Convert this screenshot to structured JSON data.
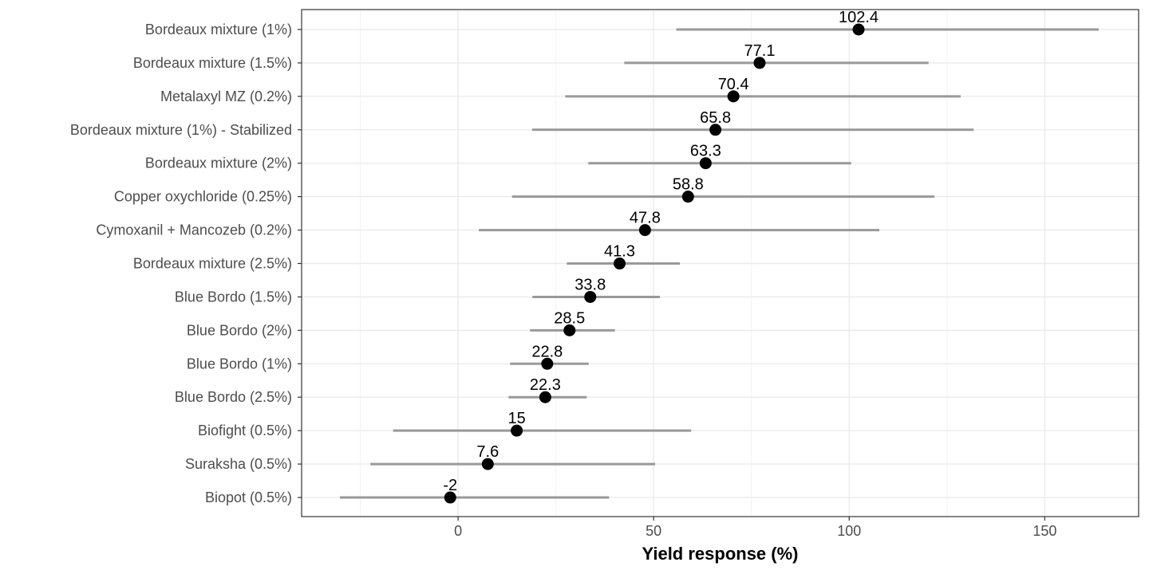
{
  "chart_data": {
    "type": "scatter",
    "title": "",
    "xlabel": "Yield response (%)",
    "ylabel": "",
    "xlim": [
      -40,
      174
    ],
    "x_ticks": [
      0,
      50,
      100,
      150
    ],
    "x_tick_labels": [
      "0",
      "50",
      "100",
      "150"
    ],
    "grid": true,
    "colors": {
      "point": "#000000",
      "interval": "#999999",
      "grid_major": "#ebebeb",
      "grid_minor": "#f2f2f2",
      "panel_border": "#333333",
      "tick_text": "#4d4d4d"
    },
    "categories": [
      "Bordeaux mixture (1%)",
      "Bordeaux mixture (1.5%)",
      "Metalaxyl MZ (0.2%)",
      "Bordeaux mixture (1%) - Stabilized",
      "Bordeaux mixture (2%)",
      "Copper oxychloride (0.25%)",
      "Cymoxanil + Mancozeb (0.2%)",
      "Bordeaux mixture (2.5%)",
      "Blue Bordo (1.5%)",
      "Blue Bordo (2%)",
      "Blue Bordo (1%)",
      "Blue Bordo (2.5%)",
      "Biofight (0.5%)",
      "Suraksha (0.5%)",
      "Biopot (0.5%)"
    ],
    "values": [
      102.4,
      77.1,
      70.4,
      65.8,
      63.3,
      58.8,
      47.8,
      41.3,
      33.8,
      28.5,
      22.8,
      22.3,
      15,
      7.6,
      -2
    ],
    "value_labels": [
      "102.4",
      "77.1",
      "70.4",
      "65.8",
      "63.3",
      "58.8",
      "47.8",
      "41.3",
      "33.8",
      "28.5",
      "22.8",
      "22.3",
      "15",
      "7.6",
      "-2"
    ],
    "lower": [
      55.8,
      42.5,
      27.4,
      18.9,
      33.3,
      13.8,
      5.3,
      27.8,
      19.0,
      18.4,
      13.3,
      12.9,
      -16.6,
      -22.4,
      -30.2
    ],
    "upper": [
      163.8,
      120.3,
      128.5,
      131.8,
      100.5,
      121.8,
      107.7,
      56.7,
      51.6,
      40.1,
      33.4,
      32.9,
      59.6,
      50.4,
      38.6
    ]
  }
}
